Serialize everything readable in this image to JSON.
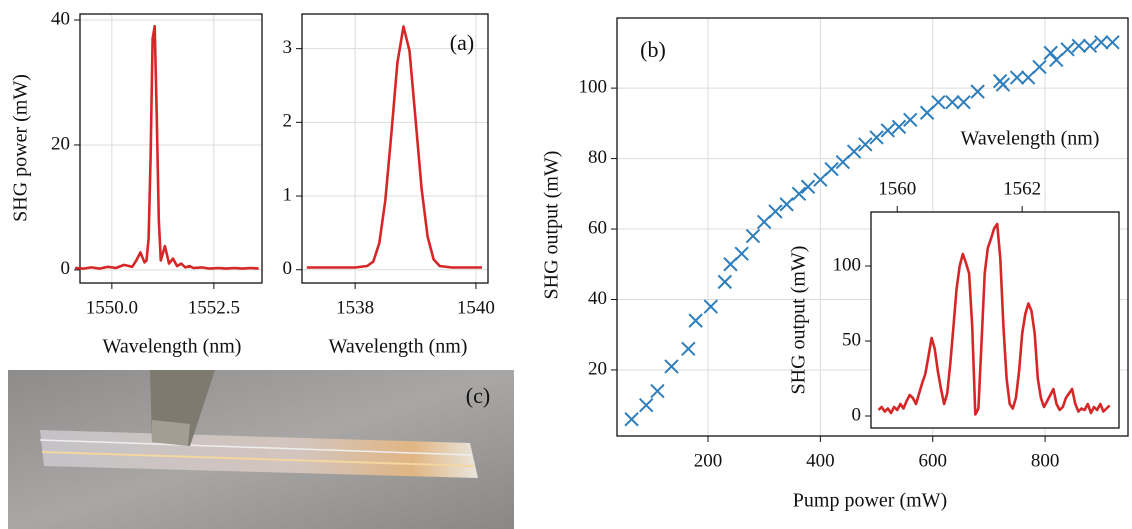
{
  "chart_data": [
    {
      "type": "line",
      "xlabel": "Wavelength (nm)",
      "ylabel": "SHG power (mW)",
      "color": "#d62728",
      "grid": true,
      "xlim": [
        1549.22,
        1553.68
      ],
      "xticks": [
        {
          "value": 1550,
          "label": "1550.0"
        },
        1552.5
      ],
      "ylim": [
        -2.1,
        40.96
      ],
      "yticks": [
        0,
        20,
        40
      ],
      "x": [
        1549.1,
        1549.3,
        1549.5,
        1549.7,
        1549.9,
        1550.1,
        1550.3,
        1550.5,
        1550.6,
        1550.7,
        1550.8,
        1550.85,
        1550.9,
        1550.95,
        1551.0,
        1551.05,
        1551.1,
        1551.15,
        1551.2,
        1551.3,
        1551.35,
        1551.4,
        1551.5,
        1551.6,
        1551.7,
        1551.8,
        1551.9,
        1552.0,
        1552.2,
        1552.4,
        1552.6,
        1552.8,
        1553.0,
        1553.2,
        1553.4,
        1553.6
      ],
      "values": [
        0.3,
        0.2,
        0.4,
        0.2,
        0.5,
        0.3,
        0.8,
        0.5,
        1.5,
        2.8,
        1.2,
        1.5,
        5,
        18,
        37,
        39,
        25,
        8,
        1.5,
        3.8,
        2.5,
        1.0,
        1.8,
        0.6,
        1.0,
        0.4,
        0.6,
        0.3,
        0.4,
        0.2,
        0.3,
        0.2,
        0.3,
        0.2,
        0.3,
        0.2
      ]
    },
    {
      "type": "line",
      "xlabel": "Wavelength (nm)",
      "annotation": "(a)",
      "color": "#d62728",
      "grid": true,
      "xlim": [
        1537.12,
        1540.2
      ],
      "xticks": [
        1538,
        1540
      ],
      "ylim": [
        -0.18,
        3.47
      ],
      "yticks": [
        0,
        1,
        2,
        3
      ],
      "x": [
        1537.2,
        1537.6,
        1538.0,
        1538.2,
        1538.3,
        1538.4,
        1538.5,
        1538.6,
        1538.7,
        1538.8,
        1538.9,
        1539.0,
        1539.1,
        1539.2,
        1539.3,
        1539.4,
        1539.6,
        1540.0,
        1540.1
      ],
      "values": [
        0.03,
        0.03,
        0.03,
        0.05,
        0.11,
        0.36,
        0.94,
        1.85,
        2.81,
        3.3,
        2.97,
        2.05,
        1.1,
        0.45,
        0.14,
        0.05,
        0.03,
        0.03,
        0.03
      ]
    },
    {
      "type": "scatter",
      "xlabel": "Pump power (mW)",
      "ylabel": "SHG output (mW)",
      "annotation": "(b)",
      "color": "#2e7ebc",
      "grid": true,
      "xlim": [
        38,
        947.6
      ],
      "xticks": [
        200,
        400,
        600,
        800
      ],
      "ylim": [
        1.25,
        119.9
      ],
      "yticks": [
        20,
        40,
        60,
        80,
        100
      ],
      "x": [
        64,
        90,
        110,
        135,
        165,
        178,
        205,
        230,
        240,
        260,
        280,
        300,
        320,
        340,
        362,
        378,
        400,
        420,
        440,
        460,
        480,
        500,
        520,
        540,
        560,
        590,
        610,
        635,
        655,
        680,
        720,
        725,
        750,
        770,
        790,
        810,
        820,
        840,
        860,
        880,
        900,
        920
      ],
      "values": [
        6,
        10,
        14,
        21,
        26,
        34,
        38,
        45,
        50,
        53,
        58,
        62,
        65,
        67,
        70,
        72,
        74,
        77,
        79,
        82,
        84,
        86,
        88,
        89,
        91,
        93,
        96,
        96,
        96,
        99,
        102,
        101,
        103,
        103,
        106,
        110,
        108,
        111,
        112,
        112,
        113,
        113
      ]
    },
    {
      "type": "line",
      "xlabel": "Wavelength (nm)",
      "ylabel": "SHG output (mW)",
      "color": "#d62728",
      "grid": false,
      "xaxis": "top",
      "xlim": [
        1559.58,
        1563.55
      ],
      "xticks": [
        1560,
        1562
      ],
      "ylim": [
        -8,
        136
      ],
      "yticks": [
        0,
        50,
        100
      ],
      "x": [
        1559.7,
        1559.75,
        1559.8,
        1559.85,
        1559.9,
        1559.95,
        1560.0,
        1560.05,
        1560.1,
        1560.15,
        1560.2,
        1560.25,
        1560.3,
        1560.35,
        1560.4,
        1560.45,
        1560.5,
        1560.55,
        1560.6,
        1560.65,
        1560.7,
        1560.75,
        1560.8,
        1560.85,
        1560.9,
        1560.95,
        1561.0,
        1561.05,
        1561.1,
        1561.15,
        1561.2,
        1561.25,
        1561.3,
        1561.35,
        1561.4,
        1561.45,
        1561.5,
        1561.55,
        1561.6,
        1561.65,
        1561.7,
        1561.75,
        1561.8,
        1561.85,
        1561.9,
        1561.95,
        1562.0,
        1562.05,
        1562.1,
        1562.15,
        1562.2,
        1562.25,
        1562.3,
        1562.35,
        1562.4,
        1562.45,
        1562.5,
        1562.55,
        1562.6,
        1562.65,
        1562.7,
        1562.75,
        1562.8,
        1562.85,
        1562.9,
        1562.95,
        1563.0,
        1563.05,
        1563.1,
        1563.15,
        1563.2,
        1563.25,
        1563.3,
        1563.35,
        1563.4
      ],
      "values": [
        4,
        6,
        3,
        5,
        2,
        6,
        4,
        8,
        5,
        10,
        14,
        12,
        8,
        15,
        22,
        28,
        40,
        52,
        45,
        30,
        18,
        8,
        15,
        35,
        60,
        85,
        100,
        108,
        102,
        95,
        60,
        1,
        5,
        50,
        95,
        112,
        118,
        125,
        128,
        105,
        60,
        25,
        8,
        5,
        12,
        30,
        55,
        68,
        75,
        70,
        55,
        25,
        12,
        6,
        10,
        14,
        18,
        8,
        4,
        6,
        12,
        15,
        18,
        8,
        3,
        5,
        4,
        8,
        2,
        6,
        4,
        8,
        3,
        5,
        7
      ]
    }
  ],
  "photo": {
    "label": "(c)"
  }
}
